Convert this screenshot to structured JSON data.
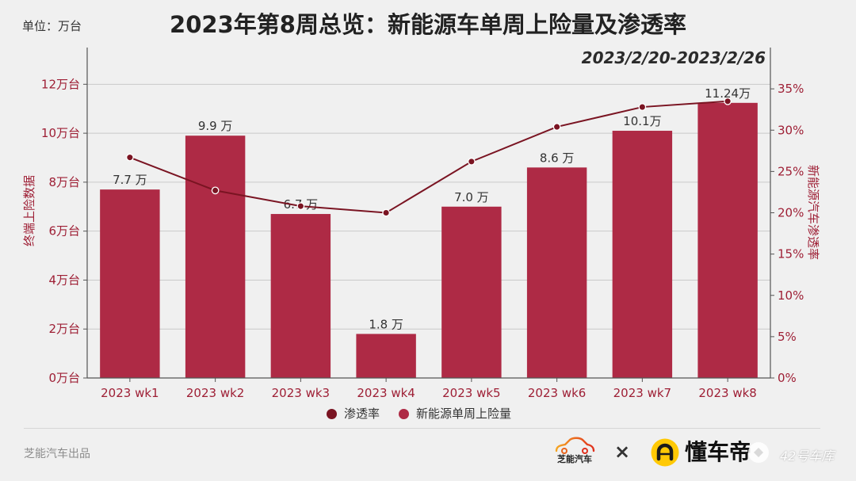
{
  "colors": {
    "background": "#F0F0F0",
    "bar": "#AE2A45",
    "line": "#7A1422",
    "axis_text": "#9E1F35",
    "brand_yellow": "#FFC905"
  },
  "chart_data": {
    "type": "bar",
    "title": "2023年第8周总览：新能源车单周上险量及渗透率",
    "subtitle": "2023/2/20-2023/2/26",
    "unit_label": "单位：万台",
    "xlabel": "",
    "ylabel": "终端上险数据",
    "ylabel_right": "新能源汽车渗透率",
    "categories": [
      "2023 wk1",
      "2023 wk2",
      "2023 wk3",
      "2023 wk4",
      "2023 wk5",
      "2023 wk6",
      "2023 wk7",
      "2023 wk8"
    ],
    "ylim": [
      0,
      13.5
    ],
    "ylim_right": [
      0,
      40
    ],
    "y_ticks": [
      0,
      2,
      4,
      6,
      8,
      10,
      12
    ],
    "y_tick_labels": [
      "0万台",
      "2万台",
      "4万台",
      "6万台",
      "8万台",
      "10万台",
      "12万台"
    ],
    "y_right_ticks": [
      0,
      5,
      10,
      15,
      20,
      25,
      30,
      35
    ],
    "y_right_tick_labels": [
      "0%",
      "5%",
      "10%",
      "15%",
      "20%",
      "25%",
      "30%",
      "35%"
    ],
    "grid": true,
    "legend_position": "bottom",
    "series": [
      {
        "name": "渗透率",
        "type": "line",
        "axis": "right",
        "color": "#7A1422",
        "values": [
          26.7,
          22.7,
          20.8,
          20.0,
          26.2,
          30.4,
          32.8,
          33.5
        ]
      },
      {
        "name": "新能源单周上险量",
        "type": "bar",
        "axis": "left",
        "color": "#AE2A45",
        "values": [
          7.7,
          9.9,
          6.7,
          1.8,
          7.0,
          8.6,
          10.1,
          11.24
        ],
        "labels": [
          "7.7 万",
          "9.9 万",
          "6.7 万",
          "1.8 万",
          "7.0 万",
          "8.6 万",
          "10.1万",
          "11.24万"
        ]
      }
    ]
  },
  "footer": {
    "credit": "芝能汽车出品",
    "brand_left": "芝能汽车",
    "separator": "×",
    "brand_right": "懂车帝",
    "watermark": "42号车库",
    "icons": {
      "brand_left": "car-outline-icon",
      "brand_right": "dongchedi-logo-icon",
      "watermark": "watermark-badge-icon"
    }
  }
}
